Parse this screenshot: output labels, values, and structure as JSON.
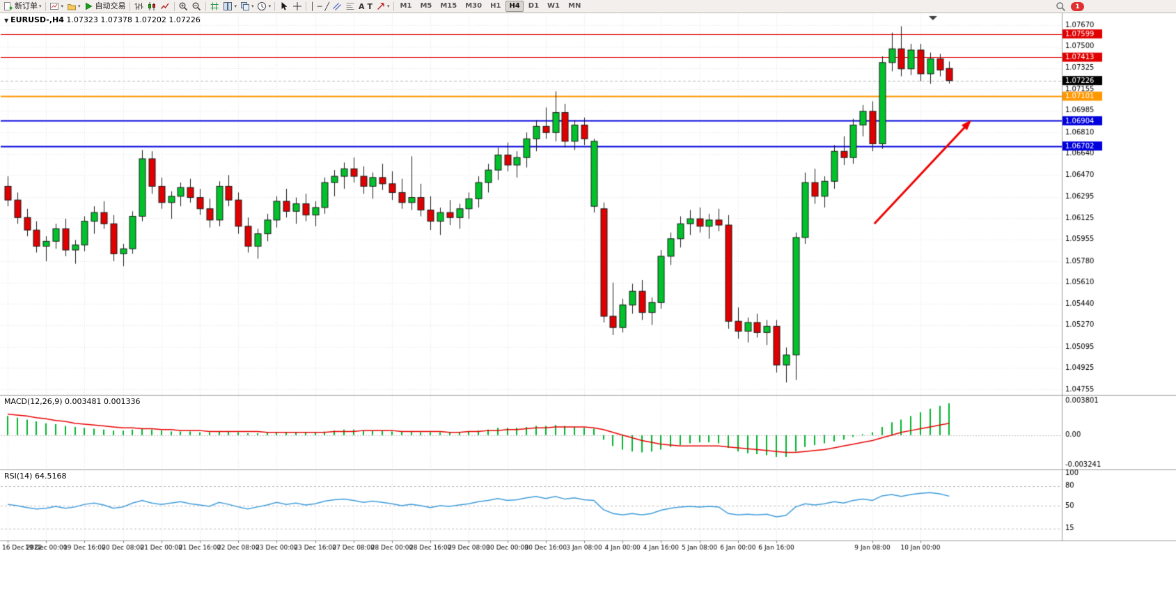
{
  "toolbar": {
    "new_order_label": "新订单",
    "autotrading_label": "自动交易",
    "caret": "▾",
    "text_tool": "A",
    "label_tool": "T",
    "vline_glyph": "│",
    "hline_glyph": "─",
    "trendline_glyph": "╱",
    "timeframes": [
      "M1",
      "M5",
      "M15",
      "M30",
      "H1",
      "H4",
      "D1",
      "W1",
      "MN"
    ],
    "active_timeframe": "H4",
    "notification_count": "1",
    "icon_names": [
      "new-order-icon",
      "new-chart-icon",
      "profiles-icon",
      "autotrading-icon",
      "bar-chart-icon",
      "candlestick-chart-icon",
      "line-chart-icon",
      "zoom-in-icon",
      "zoom-out-icon",
      "indicators-icon",
      "tile-windows-icon",
      "cascade-windows-icon",
      "clock-icon",
      "cursor-icon",
      "crosshair-icon",
      "vertical-line-icon",
      "horizontal-line-icon",
      "trendline-icon",
      "channel-icon",
      "fibonacci-icon",
      "text-icon",
      "label-icon",
      "arrows-icon",
      "search-icon"
    ]
  },
  "chart": {
    "symbol_label": "EURUSD-,H4",
    "ohlc_label": "1.07323 1.07378 1.07202 1.07226",
    "symbol_caret": "▼",
    "macd_label": "MACD(12,26,9)",
    "macd_values": "0.003481 0.001336",
    "rsi_label": "RSI(14)",
    "rsi_value": "64.5168"
  },
  "chart_data": {
    "type": "candlestick",
    "symbol": "EURUSD",
    "timeframe": "H4",
    "y_range": [
      1.04755,
      1.0767
    ],
    "y_ticks": [
      "1.07670",
      "1.07500",
      "1.07325",
      "1.07155",
      "1.06985",
      "1.06810",
      "1.06640",
      "1.06470",
      "1.06295",
      "1.06125",
      "1.05955",
      "1.05780",
      "1.05610",
      "1.05440",
      "1.05270",
      "1.05095",
      "1.04925",
      "1.04755"
    ],
    "current_price": {
      "label": "1.07226",
      "color": "#000000"
    },
    "hlines": [
      {
        "label": "1.07599",
        "color": "#e00000",
        "width": 1
      },
      {
        "label": "1.07413",
        "color": "#e00000",
        "width": 1
      },
      {
        "label": "1.07101",
        "color": "#ff9800",
        "width": 2
      },
      {
        "label": "1.06904",
        "color": "#0000dd",
        "width": 2
      },
      {
        "label": "1.06702",
        "color": "#0000dd",
        "width": 2
      }
    ],
    "x_labels": [
      "16 Dec 2022",
      "19 Dec 00:00",
      "19 Dec 16:00",
      "20 Dec 08:00",
      "21 Dec 00:00",
      "21 Dec 16:00",
      "22 Dec 08:00",
      "23 Dec 00:00",
      "23 Dec 16:00",
      "27 Dec 08:00",
      "28 Dec 00:00",
      "28 Dec 16:00",
      "29 Dec 08:00",
      "30 Dec 00:00",
      "30 Dec 16:00",
      "3 Jan 08:00",
      "4 Jan 00:00",
      "4 Jan 16:00",
      "5 Jan 08:00",
      "6 Jan 00:00",
      "6 Jan 16:00",
      "9 Jan 08:00",
      "10 Jan 00:00"
    ],
    "x_label_indices": [
      0,
      4,
      8,
      12,
      16,
      20,
      24,
      28,
      32,
      36,
      40,
      44,
      48,
      52,
      56,
      60,
      64,
      68,
      72,
      76,
      80,
      90,
      95
    ],
    "candles": [
      [
        1.0638,
        1.0646,
        1.0622,
        1.0627
      ],
      [
        1.0627,
        1.0633,
        1.0608,
        1.0613
      ],
      [
        1.0613,
        1.062,
        1.0598,
        1.0603
      ],
      [
        1.0603,
        1.061,
        1.0585,
        1.059
      ],
      [
        1.059,
        1.0598,
        1.0578,
        1.0594
      ],
      [
        1.0594,
        1.0608,
        1.0588,
        1.0604
      ],
      [
        1.0604,
        1.0612,
        1.0582,
        1.0587
      ],
      [
        1.0587,
        1.0595,
        1.0576,
        1.0591
      ],
      [
        1.0591,
        1.0614,
        1.0586,
        1.061
      ],
      [
        1.061,
        1.0622,
        1.06,
        1.0617
      ],
      [
        1.0617,
        1.0626,
        1.0604,
        1.0608
      ],
      [
        1.0608,
        1.0615,
        1.0578,
        1.0584
      ],
      [
        1.0584,
        1.0592,
        1.0574,
        1.0588
      ],
      [
        1.0588,
        1.0618,
        1.0584,
        1.0614
      ],
      [
        1.0614,
        1.0667,
        1.061,
        1.066
      ],
      [
        1.066,
        1.0666,
        1.0632,
        1.0638
      ],
      [
        1.0638,
        1.0645,
        1.062,
        1.0625
      ],
      [
        1.0625,
        1.0634,
        1.0612,
        1.063
      ],
      [
        1.063,
        1.0641,
        1.0622,
        1.0637
      ],
      [
        1.0637,
        1.0644,
        1.0625,
        1.0629
      ],
      [
        1.0629,
        1.0636,
        1.0615,
        1.062
      ],
      [
        1.062,
        1.0628,
        1.0605,
        1.0611
      ],
      [
        1.0611,
        1.0642,
        1.0606,
        1.0638
      ],
      [
        1.0638,
        1.0647,
        1.0622,
        1.0627
      ],
      [
        1.0627,
        1.0633,
        1.06,
        1.0606
      ],
      [
        1.0606,
        1.0613,
        1.0585,
        1.059
      ],
      [
        1.059,
        1.0604,
        1.058,
        1.06
      ],
      [
        1.06,
        1.0616,
        1.0594,
        1.0611
      ],
      [
        1.0611,
        1.063,
        1.0605,
        1.0626
      ],
      [
        1.0626,
        1.0636,
        1.0613,
        1.0618
      ],
      [
        1.0618,
        1.0629,
        1.0608,
        1.0624
      ],
      [
        1.0624,
        1.0632,
        1.061,
        1.0615
      ],
      [
        1.0615,
        1.0626,
        1.0606,
        1.0621
      ],
      [
        1.0621,
        1.0645,
        1.0616,
        1.0641
      ],
      [
        1.0641,
        1.0651,
        1.063,
        1.0646
      ],
      [
        1.0646,
        1.0657,
        1.0636,
        1.0652
      ],
      [
        1.0652,
        1.0661,
        1.0641,
        1.0646
      ],
      [
        1.0646,
        1.0654,
        1.0632,
        1.0638
      ],
      [
        1.0638,
        1.0649,
        1.0628,
        1.0645
      ],
      [
        1.0645,
        1.0656,
        1.0635,
        1.064
      ],
      [
        1.064,
        1.065,
        1.0627,
        1.0633
      ],
      [
        1.0633,
        1.0644,
        1.062,
        1.0625
      ],
      [
        1.0625,
        1.0662,
        1.0619,
        1.0629
      ],
      [
        1.0629,
        1.064,
        1.0614,
        1.0619
      ],
      [
        1.0619,
        1.063,
        1.0603,
        1.061
      ],
      [
        1.061,
        1.0621,
        1.0599,
        1.0617
      ],
      [
        1.0617,
        1.0627,
        1.0607,
        1.0613
      ],
      [
        1.0613,
        1.0624,
        1.0604,
        1.062
      ],
      [
        1.062,
        1.0633,
        1.0612,
        1.0628
      ],
      [
        1.0628,
        1.0646,
        1.0621,
        1.0641
      ],
      [
        1.0641,
        1.0656,
        1.0633,
        1.0651
      ],
      [
        1.0651,
        1.0669,
        1.0643,
        1.0663
      ],
      [
        1.0663,
        1.0673,
        1.065,
        1.0655
      ],
      [
        1.0655,
        1.0666,
        1.0645,
        1.0661
      ],
      [
        1.0661,
        1.0681,
        1.0653,
        1.0676
      ],
      [
        1.0676,
        1.0691,
        1.0666,
        1.0686
      ],
      [
        1.0686,
        1.0701,
        1.0676,
        1.0681
      ],
      [
        1.0681,
        1.0714,
        1.0674,
        1.0697
      ],
      [
        1.0697,
        1.0704,
        1.0669,
        1.0674
      ],
      [
        1.0674,
        1.0691,
        1.0667,
        1.0687
      ],
      [
        1.0687,
        1.0693,
        1.0671,
        1.0676
      ],
      [
        1.0622,
        1.0676,
        1.0617,
        1.0674
      ],
      [
        1.062,
        1.0625,
        1.0529,
        1.0534
      ],
      [
        1.0534,
        1.0561,
        1.0519,
        1.0525
      ],
      [
        1.0525,
        1.0548,
        1.0521,
        1.0543
      ],
      [
        1.0543,
        1.056,
        1.0536,
        1.0554
      ],
      [
        1.0554,
        1.0563,
        1.0531,
        1.0537
      ],
      [
        1.0537,
        1.0549,
        1.0527,
        1.0545
      ],
      [
        1.0545,
        1.0587,
        1.054,
        1.0582
      ],
      [
        1.0582,
        1.0601,
        1.0575,
        1.0596
      ],
      [
        1.0596,
        1.0614,
        1.0589,
        1.0608
      ],
      [
        1.0608,
        1.0619,
        1.0599,
        1.0612
      ],
      [
        1.0612,
        1.0621,
        1.0601,
        1.0606
      ],
      [
        1.0606,
        1.0616,
        1.0596,
        1.0611
      ],
      [
        1.0611,
        1.062,
        1.0602,
        1.0607
      ],
      [
        1.0607,
        1.0615,
        1.0524,
        1.053
      ],
      [
        1.053,
        1.0541,
        1.0516,
        1.0522
      ],
      [
        1.0522,
        1.0533,
        1.0513,
        1.0529
      ],
      [
        1.0529,
        1.0536,
        1.0517,
        1.0521
      ],
      [
        1.0521,
        1.0531,
        1.0511,
        1.0526
      ],
      [
        1.0526,
        1.0531,
        1.0489,
        1.0495
      ],
      [
        1.0495,
        1.0509,
        1.0481,
        1.0503
      ],
      [
        1.0503,
        1.0601,
        1.0483,
        1.0597
      ],
      [
        1.0597,
        1.0649,
        1.0592,
        1.0641
      ],
      [
        1.0641,
        1.0652,
        1.0624,
        1.063
      ],
      [
        1.063,
        1.0646,
        1.0621,
        1.0642
      ],
      [
        1.0642,
        1.0671,
        1.0636,
        1.0666
      ],
      [
        1.0666,
        1.0678,
        1.0655,
        1.0661
      ],
      [
        1.0661,
        1.0692,
        1.0656,
        1.0687
      ],
      [
        1.0687,
        1.0703,
        1.0678,
        1.0698
      ],
      [
        1.0698,
        1.0706,
        1.0666,
        1.0672
      ],
      [
        1.0672,
        1.0742,
        1.0668,
        1.0737
      ],
      [
        1.0737,
        1.0761,
        1.073,
        1.0748
      ],
      [
        1.0748,
        1.0766,
        1.0726,
        1.0732
      ],
      [
        1.0732,
        1.0752,
        1.0727,
        1.0747
      ],
      [
        1.0747,
        1.0752,
        1.0722,
        1.0728
      ],
      [
        1.0728,
        1.0745,
        1.072,
        1.074
      ],
      [
        1.074,
        1.0744,
        1.0726,
        1.0731
      ],
      [
        1.07323,
        1.07378,
        1.07202,
        1.07226
      ]
    ],
    "macd": {
      "label": "MACD(12,26,9)",
      "y_ticks": [
        "0.003801",
        "0.00",
        "-0.003241"
      ],
      "y_range": [
        -0.003241,
        0.003801
      ],
      "histogram": [
        0.0021,
        0.0019,
        0.0017,
        0.0015,
        0.0013,
        0.0012,
        0.001,
        0.0009,
        0.0008,
        0.0007,
        0.0006,
        0.0005,
        0.0005,
        0.0006,
        0.0007,
        0.0006,
        0.0005,
        0.0004,
        0.0004,
        0.0004,
        0.0003,
        0.0003,
        0.0004,
        0.0004,
        0.0003,
        0.0002,
        0.0002,
        0.0003,
        0.0003,
        0.0003,
        0.0003,
        0.0003,
        0.0003,
        0.0004,
        0.0005,
        0.0006,
        0.0006,
        0.0005,
        0.0005,
        0.0005,
        0.0004,
        0.0004,
        0.0004,
        0.0003,
        0.0003,
        0.0003,
        0.0003,
        0.0003,
        0.0004,
        0.0005,
        0.0006,
        0.0008,
        0.0008,
        0.0008,
        0.0009,
        0.001,
        0.001,
        0.0011,
        0.001,
        0.0009,
        0.0008,
        0.0007,
        -0.0005,
        -0.0012,
        -0.0016,
        -0.0018,
        -0.0019,
        -0.0018,
        -0.0016,
        -0.0013,
        -0.0011,
        -0.0009,
        -0.0008,
        -0.0008,
        -0.0009,
        -0.0014,
        -0.0018,
        -0.002,
        -0.0021,
        -0.0022,
        -0.0024,
        -0.0024,
        -0.0018,
        -0.0013,
        -0.0011,
        -0.0009,
        -0.0007,
        -0.0005,
        -0.0002,
        0.0001,
        0.0003,
        0.0009,
        0.0014,
        0.0017,
        0.0021,
        0.0025,
        0.0029,
        0.0032,
        0.0035
      ],
      "signal": [
        0.0023,
        0.0022,
        0.0021,
        0.0019,
        0.0018,
        0.0016,
        0.0015,
        0.0013,
        0.0012,
        0.0011,
        0.001,
        0.0009,
        0.0008,
        0.0008,
        0.0007,
        0.0007,
        0.0006,
        0.0006,
        0.0005,
        0.0005,
        0.0005,
        0.0004,
        0.0004,
        0.0004,
        0.0004,
        0.0004,
        0.0004,
        0.0003,
        0.0003,
        0.0003,
        0.0003,
        0.0003,
        0.0003,
        0.0003,
        0.0004,
        0.0004,
        0.0004,
        0.0005,
        0.0005,
        0.0005,
        0.0005,
        0.0004,
        0.0004,
        0.0004,
        0.0004,
        0.0004,
        0.0003,
        0.0003,
        0.0004,
        0.0004,
        0.0005,
        0.0005,
        0.0006,
        0.0006,
        0.0007,
        0.0008,
        0.0008,
        0.0009,
        0.0009,
        0.0009,
        0.0009,
        0.0008,
        0.0006,
        0.0003,
        0.0,
        -0.0003,
        -0.0006,
        -0.0008,
        -0.001,
        -0.0011,
        -0.0012,
        -0.0012,
        -0.0012,
        -0.0012,
        -0.0012,
        -0.0013,
        -0.0014,
        -0.0015,
        -0.0016,
        -0.0017,
        -0.0018,
        -0.0019,
        -0.0019,
        -0.0018,
        -0.0017,
        -0.0016,
        -0.0014,
        -0.0012,
        -0.001,
        -0.0008,
        -0.0006,
        -0.0003,
        0.0,
        0.0003,
        0.0005,
        0.0007,
        0.0009,
        0.0011,
        0.0013
      ]
    },
    "rsi": {
      "label": "RSI(14)",
      "y_ticks": [
        "100",
        "80",
        "50",
        "15"
      ],
      "y_range": [
        0,
        100
      ],
      "levels": [
        80,
        50,
        15
      ],
      "values": [
        52,
        50,
        47,
        45,
        46,
        49,
        46,
        48,
        52,
        54,
        51,
        46,
        48,
        54,
        58,
        54,
        52,
        54,
        56,
        53,
        51,
        49,
        55,
        52,
        48,
        45,
        48,
        51,
        55,
        52,
        54,
        51,
        53,
        57,
        59,
        60,
        58,
        55,
        57,
        55,
        53,
        50,
        52,
        50,
        47,
        50,
        49,
        51,
        53,
        56,
        58,
        61,
        58,
        59,
        62,
        64,
        61,
        64,
        60,
        62,
        59,
        58,
        44,
        38,
        36,
        38,
        36,
        38,
        43,
        46,
        48,
        49,
        48,
        49,
        48,
        38,
        36,
        37,
        36,
        37,
        33,
        35,
        48,
        53,
        51,
        53,
        56,
        54,
        58,
        60,
        58,
        65,
        67,
        64,
        67,
        69,
        70,
        68,
        64.5
      ]
    },
    "annotation_arrow": {
      "from_index": 90.2,
      "from_price": 1.0608,
      "to_index": 100.3,
      "to_price": 1.0691,
      "color": "#f00000"
    },
    "shift_marker_index": 96.3,
    "colors": {
      "up": "#00c32b",
      "down": "#e00000",
      "wick": "#1a1a1a",
      "macd_hist": "#00b32b",
      "macd_signal": "#e80000",
      "rsi_line": "#3e9cdb",
      "grid": "#e6e6e6"
    }
  }
}
